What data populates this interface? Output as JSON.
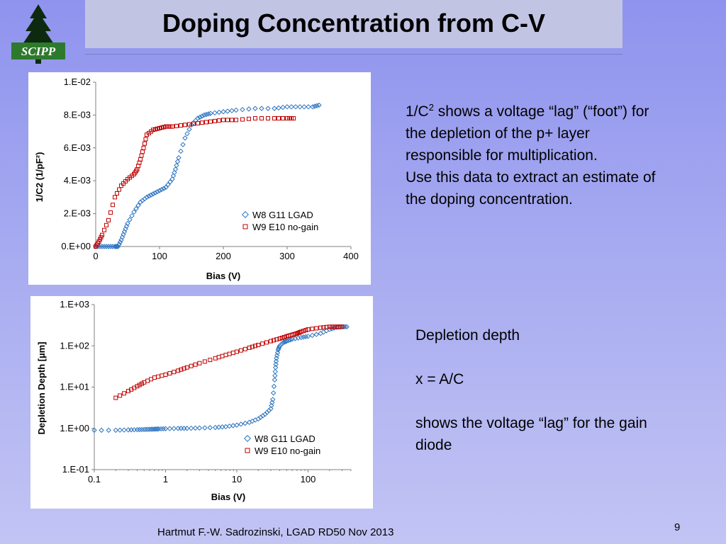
{
  "header": {
    "title": "Doping Concentration from C-V",
    "logo_text": "SCIPP"
  },
  "colors": {
    "w8_series": "#2e75c0",
    "w9_series": "#c00000",
    "background_top": "#8f93ee",
    "title_band": "#c2c4e4"
  },
  "chart_data": [
    {
      "type": "scatter",
      "xlabel": "Bias (V)",
      "ylabel": "1/C2 (1/pF²)",
      "xlim": [
        0,
        400
      ],
      "ylim": [
        0,
        0.01
      ],
      "x_ticks": [
        "0",
        "100",
        "200",
        "300",
        "400"
      ],
      "y_ticks": [
        "0.E+00",
        "2.E-03",
        "4.E-03",
        "6.E-03",
        "8.E-03",
        "1.E-02"
      ],
      "legend_position": "bottom-right",
      "grid": false,
      "series": [
        {
          "name": "W8 G11 LGAD",
          "marker": "diamond",
          "x": [
            0,
            10,
            20,
            30,
            35,
            40,
            45,
            50,
            60,
            70,
            80,
            90,
            100,
            110,
            120,
            125,
            130,
            140,
            150,
            160,
            170,
            180,
            200,
            220,
            250,
            280,
            300,
            320,
            340,
            350
          ],
          "y": [
            0,
            0,
            0,
            0,
            0,
            0.0004,
            0.0009,
            0.0014,
            0.0021,
            0.0027,
            0.003,
            0.0032,
            0.0034,
            0.0036,
            0.0041,
            0.0047,
            0.0054,
            0.0066,
            0.0074,
            0.0078,
            0.008,
            0.0081,
            0.0082,
            0.0083,
            0.0084,
            0.0084,
            0.0085,
            0.0085,
            0.0085,
            0.0086
          ]
        },
        {
          "name": "W9 E10 no-gain",
          "marker": "square",
          "x": [
            0,
            5,
            10,
            20,
            30,
            40,
            50,
            60,
            65,
            70,
            75,
            80,
            90,
            100,
            110,
            120,
            140,
            160,
            180,
            200,
            220,
            250,
            280,
            300,
            310
          ],
          "y": [
            0,
            0.0003,
            0.0007,
            0.0016,
            0.003,
            0.0037,
            0.0041,
            0.0044,
            0.0047,
            0.0053,
            0.006,
            0.0068,
            0.0071,
            0.0072,
            0.0073,
            0.0073,
            0.0074,
            0.0075,
            0.0076,
            0.0077,
            0.0077,
            0.0078,
            0.0078,
            0.0078,
            0.0078
          ]
        }
      ]
    },
    {
      "type": "scatter",
      "xlabel": "Bias (V)",
      "ylabel": "Depletion Depth [µm]",
      "x_scale": "log",
      "y_scale": "log",
      "xlim": [
        0.1,
        400
      ],
      "ylim": [
        0.1,
        1000
      ],
      "x_ticks": [
        "0.1",
        "1",
        "10",
        "100"
      ],
      "y_ticks": [
        "1.E-01",
        "1.E+00",
        "1.E+01",
        "1.E+02",
        "1.E+03"
      ],
      "legend_position": "bottom-right",
      "grid": false,
      "series": [
        {
          "name": "W8 G11 LGAD",
          "marker": "diamond",
          "x": [
            0.1,
            0.2,
            0.3,
            0.4,
            0.5,
            0.6,
            0.7,
            0.8,
            1,
            1.5,
            2,
            3,
            5,
            7,
            10,
            15,
            20,
            25,
            30,
            32,
            34,
            35,
            36,
            38,
            40,
            45,
            50,
            60,
            80,
            100,
            150,
            200,
            250,
            300,
            350
          ],
          "y": [
            0.9,
            0.9,
            0.92,
            0.93,
            0.94,
            0.95,
            0.96,
            0.97,
            0.98,
            1.0,
            1.0,
            1.02,
            1.05,
            1.1,
            1.2,
            1.4,
            1.7,
            2.2,
            3.0,
            5,
            15,
            30,
            50,
            80,
            100,
            120,
            130,
            145,
            160,
            170,
            200,
            250,
            280,
            290,
            290
          ]
        },
        {
          "name": "W9 E10 no-gain",
          "marker": "square",
          "x": [
            0.2,
            0.3,
            0.4,
            0.5,
            0.7,
            1,
            1.5,
            2,
            3,
            5,
            7,
            10,
            15,
            20,
            30,
            40,
            50,
            60,
            70,
            80,
            100,
            150,
            200,
            250,
            300
          ],
          "y": [
            5.5,
            8,
            10.5,
            13,
            17,
            20,
            25,
            30,
            38,
            50,
            60,
            72,
            90,
            105,
            130,
            150,
            170,
            185,
            200,
            220,
            250,
            275,
            290,
            290,
            290
          ]
        }
      ]
    }
  ],
  "text_block_1": {
    "line1_prefix": "1/C",
    "line1_sup": "2",
    "line1_rest": " shows a voltage “lag” (“foot”) for the depletion of the p+ layer responsible for multiplication.",
    "line2": "Use this data to extract an estimate of the doping concentration."
  },
  "text_block_2": {
    "title": "Depletion depth",
    "formula": "x = A/C",
    "note": "shows the voltage “lag” for the gain diode"
  },
  "footer": {
    "credit": "Hartmut F.-W. Sadrozinski, LGAD RD50 Nov 2013",
    "page_number": "9"
  }
}
